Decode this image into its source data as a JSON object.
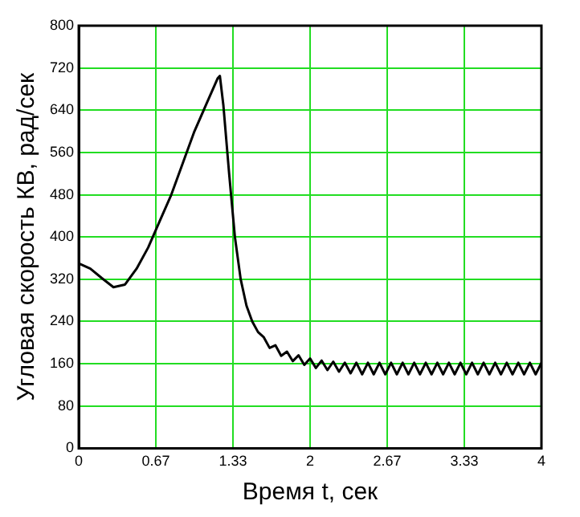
{
  "chart_data": {
    "type": "line",
    "xlabel": "Время t, сек",
    "ylabel": "Угловая скорость КВ, рад/сек",
    "xlim": [
      0,
      4
    ],
    "xticks": [
      0,
      {
        "value": 0.6667,
        "label": "0.67"
      },
      {
        "value": 1.3333,
        "label": "1.33"
      },
      2,
      {
        "value": 2.6667,
        "label": "2.67"
      },
      {
        "value": 3.3333,
        "label": "3.33"
      },
      4
    ],
    "ylim": [
      0,
      800
    ],
    "yticks": [
      0,
      80,
      160,
      240,
      320,
      400,
      480,
      560,
      640,
      720,
      800
    ],
    "grid": true,
    "marker": "none",
    "line_style": "solid",
    "series": [
      {
        "color": "#000000",
        "x": [
          0,
          0.1,
          0.2,
          0.3,
          0.4,
          0.5,
          0.6,
          0.7,
          0.8,
          0.9,
          1.0,
          1.1,
          1.2,
          1.22,
          1.25,
          1.3,
          1.35,
          1.4,
          1.45,
          1.5,
          1.55,
          1.6,
          1.65,
          1.7,
          1.75,
          1.8,
          1.85,
          1.9,
          1.95,
          2.0,
          2.05,
          2.1,
          2.15,
          2.2,
          2.25,
          2.3,
          2.35,
          2.4,
          2.45,
          2.5,
          2.55,
          2.6,
          2.65,
          2.7,
          2.75,
          2.8,
          2.85,
          2.9,
          2.95,
          3.0,
          3.05,
          3.1,
          3.15,
          3.2,
          3.25,
          3.3,
          3.35,
          3.4,
          3.45,
          3.5,
          3.55,
          3.6,
          3.65,
          3.7,
          3.75,
          3.8,
          3.85,
          3.9,
          3.95,
          4.0
        ],
        "values": [
          350,
          340,
          322,
          305,
          310,
          340,
          380,
          430,
          480,
          540,
          600,
          650,
          700,
          705,
          650,
          520,
          400,
          320,
          270,
          240,
          220,
          210,
          190,
          195,
          175,
          183,
          165,
          176,
          158,
          170,
          152,
          166,
          148,
          164,
          145,
          162,
          142,
          162,
          140,
          162,
          140,
          162,
          140,
          162,
          140,
          162,
          140,
          162,
          140,
          162,
          140,
          162,
          140,
          162,
          140,
          162,
          140,
          162,
          140,
          162,
          140,
          162,
          140,
          162,
          140,
          162,
          140,
          162,
          140,
          162
        ]
      }
    ]
  }
}
